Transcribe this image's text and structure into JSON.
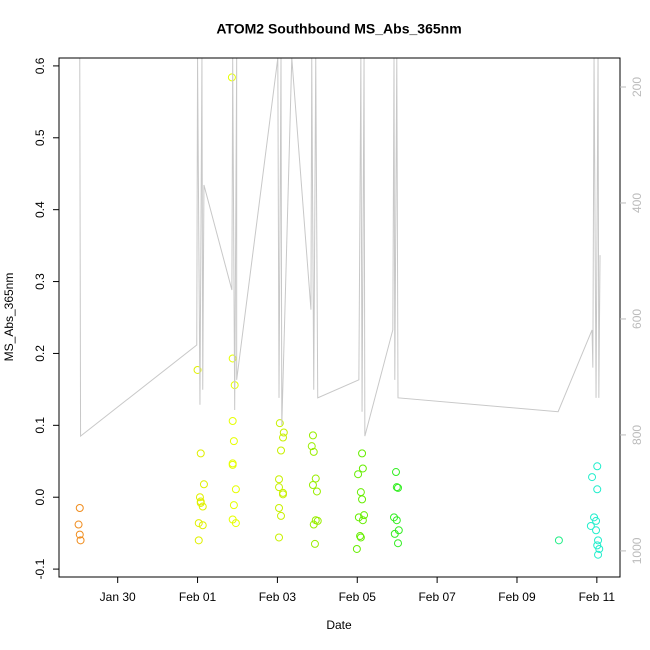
{
  "chart_data": {
    "type": "scatter",
    "title": "ATOM2 Southbound MS_Abs_365nm",
    "x_label": "Date",
    "y_label": "MS_Abs_365nm",
    "xlim": [
      28.53,
      42.58
    ],
    "xticks": [
      {
        "value": 30,
        "label": "Jan 30"
      },
      {
        "value": 32,
        "label": "Feb 01"
      },
      {
        "value": 34,
        "label": "Feb 03"
      },
      {
        "value": 36,
        "label": "Feb 05"
      },
      {
        "value": 38,
        "label": "Feb 07"
      },
      {
        "value": 40,
        "label": "Feb 09"
      },
      {
        "value": 42,
        "label": "Feb 11"
      }
    ],
    "ylim": [
      -0.111,
      0.611
    ],
    "yticks": [
      -0.1,
      {
        "value": 0,
        "label": "0.0"
      },
      0.1,
      0.2,
      0.3,
      0.4,
      0.5,
      0.6
    ],
    "y2lim": [
      1045,
      150
    ],
    "y2ticks": [
      200,
      400,
      600,
      800,
      1000
    ],
    "series": [
      {
        "type": "scatter",
        "color": "#F08C1C",
        "x": [
          29.05,
          29.02,
          29.05,
          29.07
        ],
        "values": [
          -0.015,
          -0.038,
          -0.052,
          -0.06
        ]
      },
      {
        "type": "scatter",
        "color": "#E0F000",
        "x": [
          32.0,
          32.08,
          32.16,
          32.06,
          32.08,
          32.13,
          32.03,
          32.13,
          32.03,
          32.08
        ],
        "values": [
          0.177,
          0.061,
          0.018,
          0.0,
          -0.006,
          -0.013,
          -0.036,
          -0.039,
          -0.06,
          -0.008
        ]
      },
      {
        "type": "scatter",
        "color": "#E6FF00",
        "x": [
          32.86,
          32.88,
          32.93,
          32.88,
          32.91,
          32.88,
          32.88,
          32.96,
          32.91,
          32.88,
          32.96
        ],
        "values": [
          0.584,
          0.193,
          0.156,
          0.106,
          0.078,
          0.047,
          0.045,
          0.011,
          -0.011,
          -0.031,
          -0.036
        ]
      },
      {
        "type": "scatter",
        "color": "#C8F000",
        "x": [
          34.06,
          34.16,
          34.14,
          34.09,
          34.04,
          34.04,
          34.14,
          34.14,
          34.04,
          34.09,
          34.04
        ],
        "values": [
          0.103,
          0.09,
          0.083,
          0.065,
          0.025,
          0.014,
          0.006,
          0.004,
          -0.015,
          -0.026,
          -0.056
        ]
      },
      {
        "type": "scatter",
        "color": "#99EE00",
        "x": [
          34.89,
          34.86,
          34.91,
          34.96,
          34.89,
          34.99,
          34.96,
          34.91,
          35.01,
          34.94
        ],
        "values": [
          0.086,
          0.071,
          0.063,
          0.026,
          0.017,
          0.008,
          -0.032,
          -0.038,
          -0.033,
          -0.065
        ]
      },
      {
        "type": "scatter",
        "color": "#66EE00",
        "x": [
          36.12,
          36.14,
          36.02,
          36.09,
          36.12,
          36.04,
          36.17,
          36.14,
          36.07,
          35.99,
          36.09
        ],
        "values": [
          0.061,
          0.04,
          0.032,
          0.007,
          -0.003,
          -0.028,
          -0.025,
          -0.032,
          -0.054,
          -0.072,
          -0.056
        ]
      },
      {
        "type": "scatter",
        "color": "#33EE22",
        "x": [
          36.97,
          36.99,
          37.02,
          36.92,
          36.99,
          37.04,
          36.94,
          37.02
        ],
        "values": [
          0.035,
          0.014,
          0.013,
          -0.028,
          -0.032,
          -0.046,
          -0.051,
          -0.064
        ]
      },
      {
        "type": "scatter",
        "color": "#22EE88",
        "x": [
          41.05
        ],
        "values": [
          -0.06
        ]
      },
      {
        "type": "scatter",
        "color": "#22EECC",
        "x": [
          42.01,
          41.88,
          42.01,
          41.93,
          41.98,
          41.85,
          41.98,
          42.03,
          42.01,
          42.06,
          42.03
        ],
        "values": [
          0.043,
          0.028,
          0.011,
          -0.028,
          -0.033,
          -0.04,
          -0.046,
          -0.06,
          -0.067,
          -0.072,
          -0.08
        ]
      },
      {
        "type": "line",
        "axis": "y2",
        "color": "#c8c8c8",
        "x": [
          29.05,
          29.07,
          31.98,
          32.0,
          32.06,
          32.11,
          32.13,
          32.16,
          32.86,
          32.88,
          32.93,
          32.98,
          32.98,
          34.01,
          34.04,
          34.09,
          34.11,
          34.36,
          34.84,
          34.86,
          34.91,
          34.96,
          35.01,
          36.04,
          36.09,
          36.12,
          36.17,
          36.19,
          36.89,
          36.92,
          36.94,
          36.99,
          37.02,
          41.03,
          41.88,
          41.9,
          41.93,
          41.98,
          42.03,
          42.05,
          42.08
        ],
        "values": [
          150,
          802,
          645,
          150,
          748,
          150,
          722,
          369,
          550,
          150,
          757,
          150,
          705,
          150,
          736,
          150,
          783,
          150,
          584,
          150,
          722,
          150,
          736,
          705,
          150,
          760,
          150,
          802,
          619,
          150,
          705,
          150,
          736,
          760,
          619,
          684,
          150,
          736,
          150,
          736,
          490
        ]
      }
    ]
  }
}
